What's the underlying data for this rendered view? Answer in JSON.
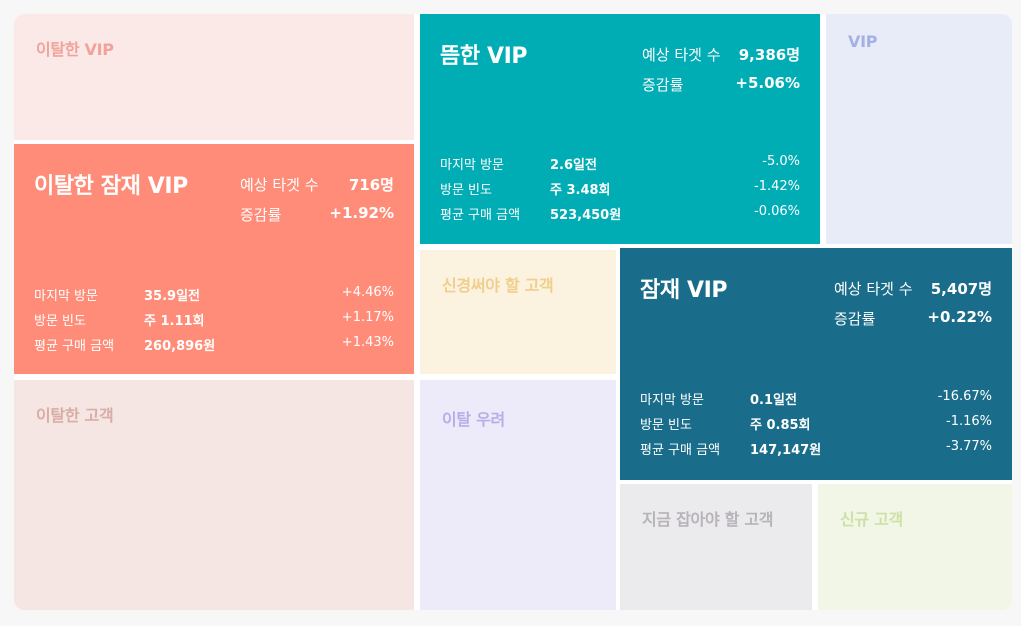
{
  "tiles": {
    "churned_vip": {
      "label": "이탈한 VIP"
    },
    "vip": {
      "label": "VIP"
    },
    "attention": {
      "label": "신경써야 할 고객"
    },
    "churned": {
      "label": "이탈한 고객"
    },
    "at_risk": {
      "label": "이탈 우려"
    },
    "must_catch": {
      "label": "지금 잡아야 할 고객"
    },
    "new": {
      "label": "신규 고객"
    },
    "dormant_vip": {
      "title": "뜸한 VIP",
      "target_label": "예상 타겟 수",
      "target_value": "9,386명",
      "growth_label": "증감률",
      "growth_value": "+5.06%",
      "metrics": [
        {
          "label": "마지막 방문",
          "value": "2.6일전",
          "delta": "-5.0%"
        },
        {
          "label": "방문 빈도",
          "value": "주 3.48회",
          "delta": "-1.42%"
        },
        {
          "label": "평균 구매 금액",
          "value": "523,450원",
          "delta": "-0.06%"
        }
      ]
    },
    "churned_potential_vip": {
      "title": "이탈한 잠재 VIP",
      "target_label": "예상 타겟 수",
      "target_value": "716명",
      "growth_label": "증감률",
      "growth_value": "+1.92%",
      "metrics": [
        {
          "label": "마지막 방문",
          "value": "35.9일전",
          "delta": "+4.46%"
        },
        {
          "label": "방문 빈도",
          "value": "주 1.11회",
          "delta": "+1.17%"
        },
        {
          "label": "평균 구매 금액",
          "value": "260,896원",
          "delta": "+1.43%"
        }
      ]
    },
    "potential_vip": {
      "title": "잠재 VIP",
      "target_label": "예상 타겟 수",
      "target_value": "5,407명",
      "growth_label": "증감률",
      "growth_value": "+0.22%",
      "metrics": [
        {
          "label": "마지막 방문",
          "value": "0.1일전",
          "delta": "-16.67%"
        },
        {
          "label": "방문 빈도",
          "value": "주 0.85회",
          "delta": "-1.16%"
        },
        {
          "label": "평균 구매 금액",
          "value": "147,147원",
          "delta": "-3.77%"
        }
      ]
    }
  },
  "colors": {
    "dormant_vip": "#00adb5",
    "churned_potential_vip": "#fe8c78",
    "potential_vip": "#1a6d8a"
  }
}
